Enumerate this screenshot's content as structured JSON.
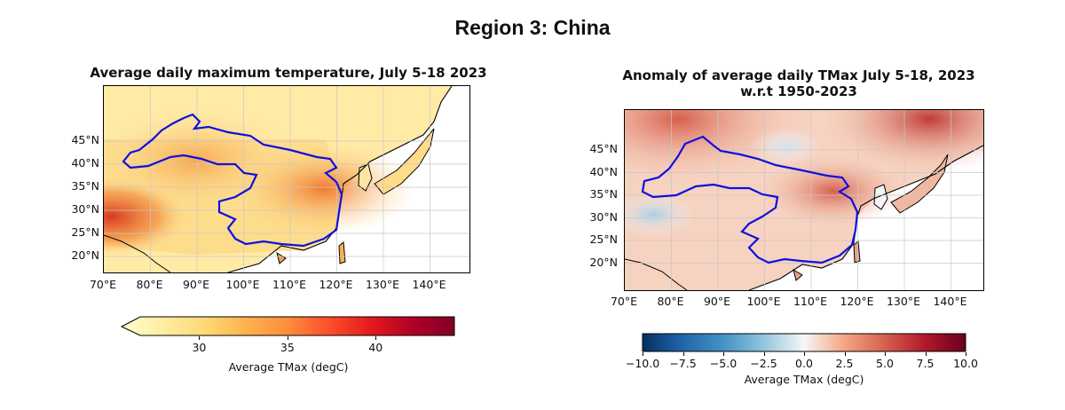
{
  "suptitle": "Region 3: China",
  "panels": [
    {
      "title_lines": [
        "Average daily maximum temperature, July 5-18 2023"
      ],
      "lat_ticks": [
        "45°N",
        "40°N",
        "35°N",
        "30°N",
        "25°N",
        "20°N"
      ],
      "lon_ticks": [
        "70°E",
        "80°E",
        "90°E",
        "100°E",
        "110°E",
        "120°E",
        "130°E",
        "140°E"
      ],
      "colorbar": {
        "label": "Average TMax (degC)",
        "ticks": [
          "30",
          "35",
          "40"
        ],
        "cmap": "YlOrRd",
        "extend": "min",
        "colors": [
          "#ffffcc",
          "#ffeda0",
          "#fed976",
          "#feb24c",
          "#fd8d3c",
          "#fc4e2a",
          "#e31a1c",
          "#b10026",
          "#800026"
        ]
      }
    },
    {
      "title_lines": [
        "Anomaly of average daily TMax July 5-18, 2023",
        "w.r.t 1950-2023"
      ],
      "lat_ticks": [
        "45°N",
        "40°N",
        "35°N",
        "30°N",
        "25°N",
        "20°N"
      ],
      "lon_ticks": [
        "70°E",
        "80°E",
        "90°E",
        "100°E",
        "110°E",
        "120°E",
        "130°E",
        "140°E"
      ],
      "colorbar": {
        "label": "Average TMax (degC)",
        "ticks": [
          "−10.0",
          "−7.5",
          "−5.0",
          "−2.5",
          "0.0",
          "2.5",
          "5.0",
          "7.5",
          "10.0"
        ],
        "cmap": "RdBu_r",
        "colors": [
          "#053061",
          "#2166ac",
          "#4393c3",
          "#92c5de",
          "#f7f7f7",
          "#f4a582",
          "#d6604d",
          "#b2182b",
          "#67001f"
        ]
      }
    }
  ],
  "region_outline_color": "#1010e0"
}
